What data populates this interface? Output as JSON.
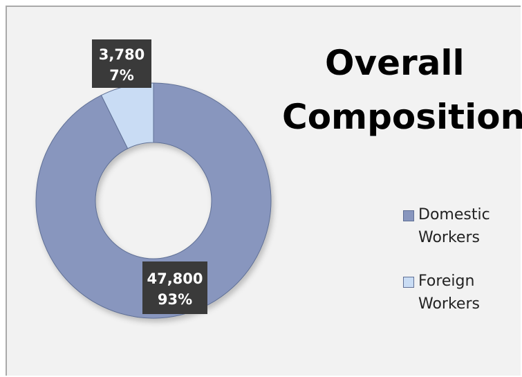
{
  "chart_data": {
    "type": "pie",
    "subtype": "donut",
    "title_lines": [
      "Overall",
      "Composition"
    ],
    "categories": [
      "Domestic Workers",
      "Foreign Workers"
    ],
    "values": [
      47800,
      3780
    ],
    "percent_labels": [
      "93%",
      "7%"
    ],
    "value_labels": [
      "47,800",
      "3,780"
    ],
    "colors": [
      "#8896be",
      "#c9dcf4"
    ],
    "legend_labels": [
      [
        "Domestic",
        "Workers"
      ],
      [
        "Foreign",
        "Workers"
      ]
    ],
    "legend_position": "right"
  }
}
